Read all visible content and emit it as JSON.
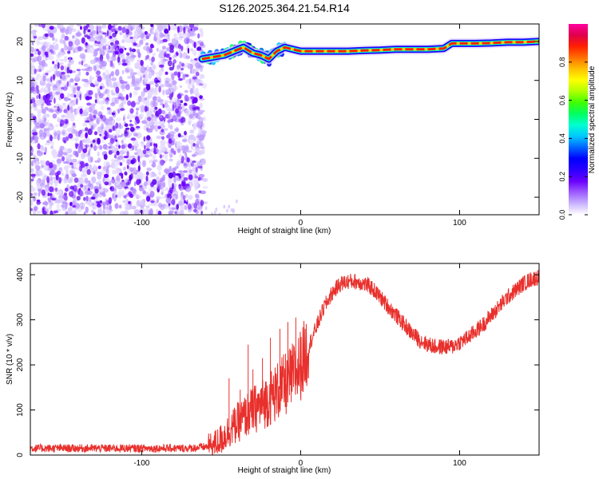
{
  "figure": {
    "title": "S126.2025.364.21.54.R14"
  },
  "colors": {
    "series": "#e8302c",
    "frame": "#000000",
    "colorbar": [
      "#ffffff",
      "#c9b3ff",
      "#9d5cff",
      "#6a00ff",
      "#2a00ff",
      "#0000ff",
      "#0064ff",
      "#00c8ff",
      "#00ffd0",
      "#00ff60",
      "#40ff00",
      "#b0ff00",
      "#ffff00",
      "#ffc000",
      "#ff7000",
      "#ff2000",
      "#e0004a",
      "#ff00a0"
    ]
  },
  "chart_data": [
    {
      "type": "heatmap",
      "title": "S126.2025.364.21.54.R14",
      "xlabel": "Height of straight line (km)",
      "ylabel": "Frequency (Hz)",
      "xlim": [
        -170,
        150
      ],
      "ylim": [
        -24.5,
        24.5
      ],
      "x_ticks": [
        {
          "value": -100,
          "label": "-100"
        },
        {
          "value": 0,
          "label": "0"
        },
        {
          "value": 100,
          "label": "100"
        }
      ],
      "y_ticks": [
        {
          "value": 20,
          "label": "20"
        },
        {
          "value": 10,
          "label": "10"
        },
        {
          "value": 0,
          "label": "0"
        },
        {
          "value": -10,
          "label": "-10"
        },
        {
          "value": -20,
          "label": "-20"
        }
      ],
      "noise_region_x": [
        -170,
        -62
      ],
      "ridge": {
        "x": [
          -62,
          -55,
          -48,
          -42,
          -36,
          -30,
          -25,
          -20,
          -15,
          -10,
          -5,
          0,
          10,
          20,
          30,
          40,
          50,
          60,
          70,
          80,
          90,
          95,
          100,
          110,
          120,
          130,
          140,
          150
        ],
        "y": [
          15.5,
          16.0,
          16.5,
          17.5,
          18.5,
          17.0,
          16.5,
          15.5,
          17.5,
          18.5,
          18.0,
          17.5,
          17.5,
          17.5,
          17.5,
          17.7,
          17.8,
          18.0,
          18.0,
          18.0,
          18.2,
          19.5,
          19.5,
          19.5,
          19.6,
          19.8,
          19.8,
          20.0
        ]
      },
      "colorbar": {
        "label": "Normalized spectral amplitude",
        "range": [
          0,
          1
        ],
        "ticks": [
          {
            "value": 0.0,
            "label": "0.0"
          },
          {
            "value": 0.2,
            "label": "0.2"
          },
          {
            "value": 0.4,
            "label": "0.4"
          },
          {
            "value": 0.6,
            "label": "0.6"
          },
          {
            "value": 0.8,
            "label": "0.8"
          }
        ]
      }
    },
    {
      "type": "line",
      "xlabel": "Height of straight line (km)",
      "ylabel": "SNR (10 * v/v)",
      "xlim": [
        -170,
        150
      ],
      "ylim": [
        0,
        425
      ],
      "x_ticks": [
        {
          "value": -100,
          "label": "-100"
        },
        {
          "value": 0,
          "label": "0"
        },
        {
          "value": 100,
          "label": "100"
        }
      ],
      "y_ticks": [
        {
          "value": 0,
          "label": "0"
        },
        {
          "value": 100,
          "label": "100"
        },
        {
          "value": 200,
          "label": "200"
        },
        {
          "value": 300,
          "label": "300"
        },
        {
          "value": 400,
          "label": "400"
        }
      ],
      "series": [
        {
          "x": [
            -170,
            -150,
            -130,
            -110,
            -90,
            -70,
            -60,
            -55,
            -50,
            -45,
            -40,
            -35,
            -30,
            -25,
            -20,
            -15,
            -10,
            -5,
            0,
            5,
            10,
            15,
            20,
            25,
            30,
            35,
            40,
            45,
            50,
            55,
            60,
            65,
            70,
            75,
            80,
            85,
            90,
            95,
            100,
            105,
            110,
            115,
            120,
            125,
            130,
            135,
            140,
            145,
            150
          ],
          "y": [
            15,
            15,
            15,
            15,
            15,
            15,
            18,
            22,
            35,
            55,
            70,
            85,
            100,
            110,
            125,
            140,
            155,
            175,
            200,
            240,
            285,
            330,
            360,
            380,
            385,
            385,
            380,
            370,
            350,
            330,
            310,
            290,
            270,
            255,
            245,
            240,
            240,
            240,
            250,
            260,
            275,
            290,
            310,
            330,
            350,
            365,
            380,
            390,
            395
          ]
        }
      ],
      "spikes": [
        {
          "x": -45,
          "y": 170
        },
        {
          "x": -38,
          "y": 145
        },
        {
          "x": -33,
          "y": 245
        },
        {
          "x": -30,
          "y": 190
        },
        {
          "x": -24,
          "y": 215
        },
        {
          "x": -19,
          "y": 260
        },
        {
          "x": -13,
          "y": 280
        },
        {
          "x": -8,
          "y": 295
        },
        {
          "x": -3,
          "y": 305
        }
      ]
    }
  ]
}
